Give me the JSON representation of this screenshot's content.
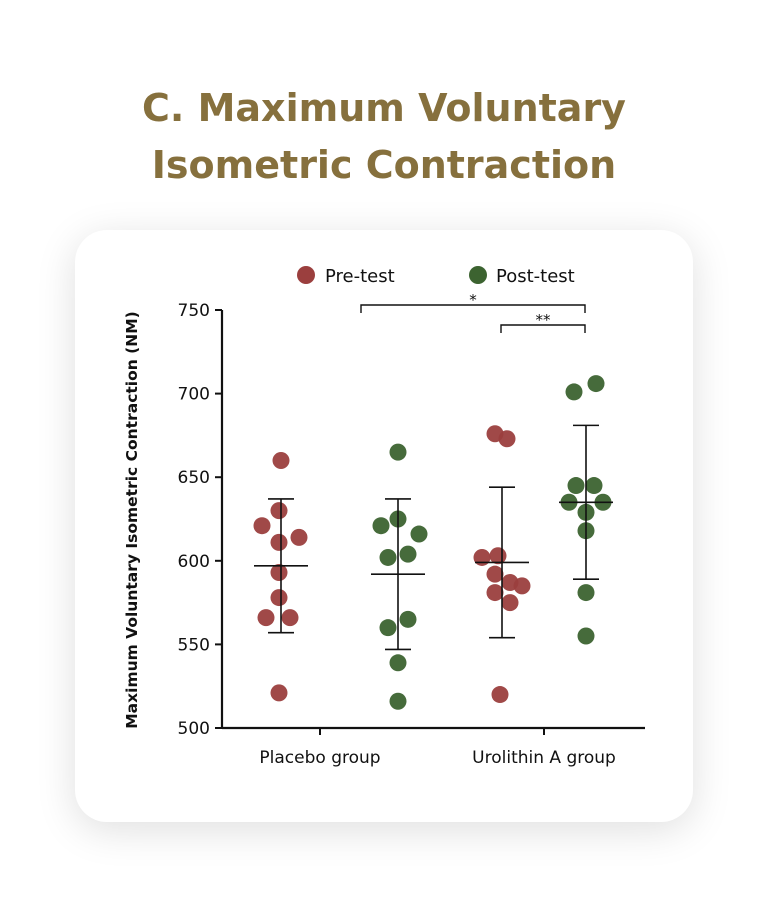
{
  "title_line1": "C. Maximum Voluntary",
  "title_line2": "Isometric Contraction",
  "chart_data": {
    "type": "scatter",
    "title": "C. Maximum Voluntary Isometric Contraction",
    "ylabel": "Maximum Voluntary Isometric Contraction (NM)",
    "xlabel": "",
    "ylim": [
      500,
      750
    ],
    "yticks": [
      500,
      550,
      600,
      650,
      700,
      750
    ],
    "categories": [
      "Placebo group",
      "Urolithin A group"
    ],
    "legend": {
      "position": "top",
      "entries": [
        "Pre-test",
        "Post-test"
      ]
    },
    "colors": {
      "Pre-test": "#9b3f3e",
      "Post-test": "#3c6330"
    },
    "series": [
      {
        "group": "Placebo group",
        "name": "Pre-test",
        "values": [
          660,
          630,
          621,
          611,
          614,
          593,
          578,
          566,
          566,
          521
        ],
        "mean": 597,
        "err_low": 557,
        "err_high": 637
      },
      {
        "group": "Placebo group",
        "name": "Post-test",
        "values": [
          665,
          625,
          621,
          616,
          602,
          604,
          565,
          560,
          539,
          516
        ],
        "mean": 592,
        "err_low": 547,
        "err_high": 637
      },
      {
        "group": "Urolithin A group",
        "name": "Pre-test",
        "values": [
          676,
          673,
          602,
          603,
          592,
          587,
          585,
          581,
          575,
          520
        ],
        "mean": 599,
        "err_low": 554,
        "err_high": 644
      },
      {
        "group": "Urolithin A group",
        "name": "Post-test",
        "values": [
          701,
          706,
          645,
          645,
          635,
          635,
          629,
          618,
          581,
          555
        ],
        "mean": 635,
        "err_low": 589,
        "err_high": 681
      }
    ],
    "annotations": [
      {
        "label": "*",
        "from": "Placebo group Post-test",
        "to": "Urolithin A group Post-test"
      },
      {
        "label": "**",
        "from": "Urolithin A group Pre-test",
        "to": "Urolithin A group Post-test"
      }
    ]
  }
}
